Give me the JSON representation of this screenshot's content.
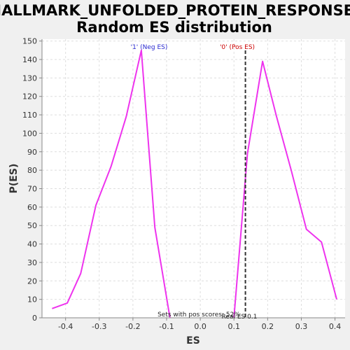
{
  "chart_data": {
    "type": "line",
    "title_line1": "HALLMARK_UNFOLDED_PROTEIN_RESPONSE:",
    "title_line2": "Random ES distribution",
    "xlabel": "ES",
    "ylabel": "P(ES)",
    "xlim": [
      -0.47,
      0.43
    ],
    "ylim": [
      0,
      151
    ],
    "xticks": [
      -0.4,
      -0.3,
      -0.2,
      -0.1,
      0.0,
      0.1,
      0.2,
      0.3,
      0.4
    ],
    "xtick_labels": [
      "-0.4",
      "-0.3",
      "-0.2",
      "-0.1",
      "0.0",
      "0.1",
      "0.2",
      "0.3",
      "0.4"
    ],
    "yticks": [
      0,
      10,
      20,
      30,
      40,
      50,
      60,
      70,
      80,
      90,
      100,
      110,
      120,
      130,
      140,
      150
    ],
    "grid": true,
    "series": [
      {
        "color": "#ee33ee",
        "x": [
          -0.44,
          -0.395,
          -0.355,
          -0.31,
          -0.265,
          -0.22,
          -0.175,
          -0.135,
          -0.09
        ],
        "y": [
          5,
          8,
          24,
          61,
          82,
          109,
          145,
          49,
          0
        ]
      },
      {
        "color": "#ee33ee",
        "x": [
          0.1,
          0.14,
          0.185,
          0.225,
          0.27,
          0.315,
          0.36,
          0.405
        ],
        "y": [
          0,
          89,
          139,
          110,
          80,
          48,
          41,
          10
        ]
      }
    ],
    "marker": {
      "x": 0.134,
      "color": "#333333",
      "style": "dashed"
    },
    "annotations": {
      "neg_label": "'1' (Neg ES)",
      "neg_color": "#2a2ad0",
      "pos_label": "'0' (Pos ES)",
      "pos_color": "#cc0000",
      "footnote": "Sets with pos scores: 52%",
      "marker_text": "Real ES 0.1"
    }
  }
}
